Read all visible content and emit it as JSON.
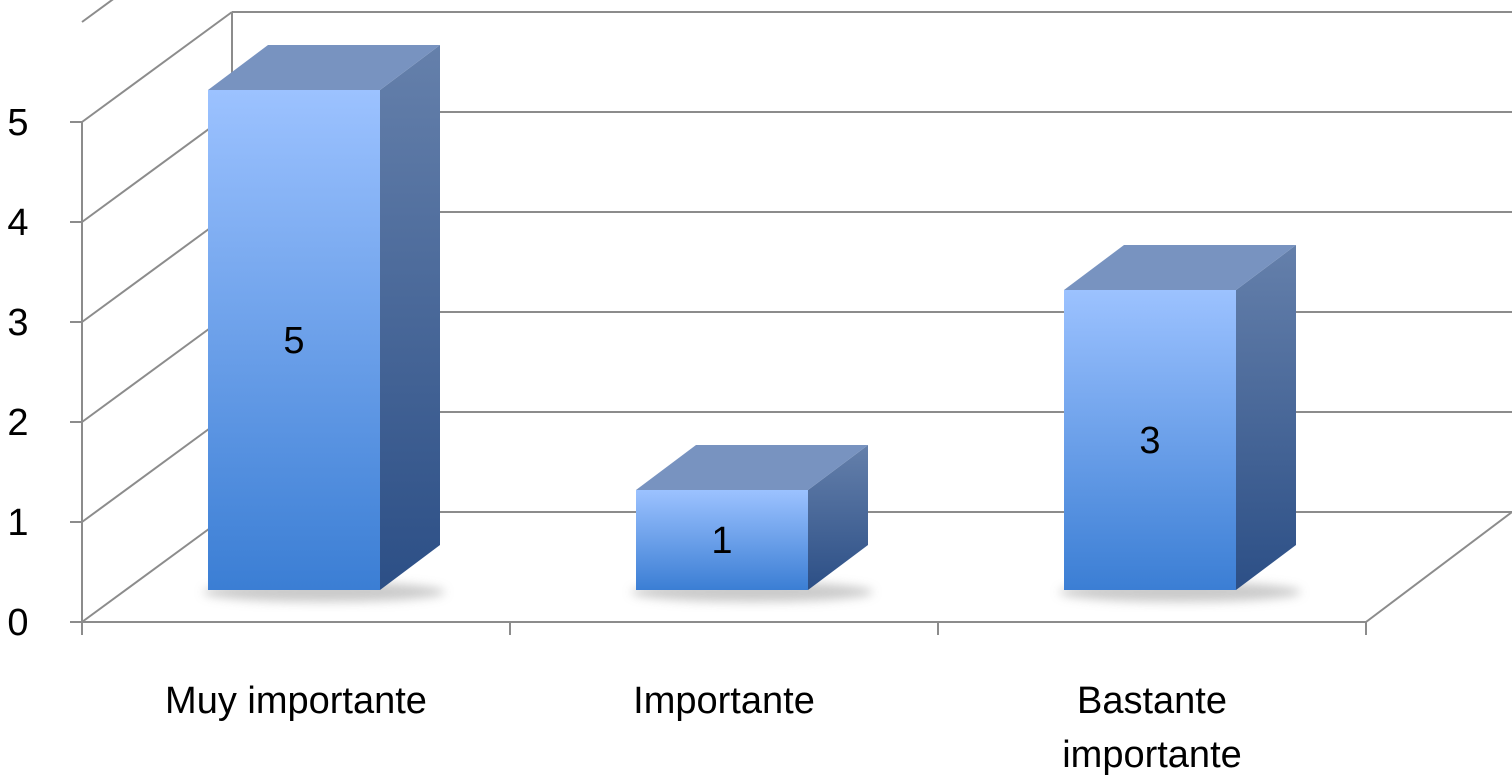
{
  "chart_data": {
    "type": "bar",
    "categories": [
      [
        "Muy importante"
      ],
      [
        "Importante"
      ],
      [
        "Bastante",
        "importante"
      ]
    ],
    "values": [
      5,
      1,
      3
    ],
    "data_labels": [
      "5",
      "1",
      "3"
    ],
    "y_ticks": [
      "0",
      "1",
      "2",
      "3",
      "4",
      "5"
    ],
    "ylim": [
      0,
      5
    ],
    "grid": true,
    "legend": "none",
    "colors": {
      "front_top": "#9cc2ff",
      "front_bottom": "#3b7ed4",
      "side_top": "#6580ab",
      "side_bottom": "#2c4f86",
      "top_face": "#7893c0",
      "grid": "#8c8c8c",
      "shadow": "#bdbdbd"
    }
  }
}
